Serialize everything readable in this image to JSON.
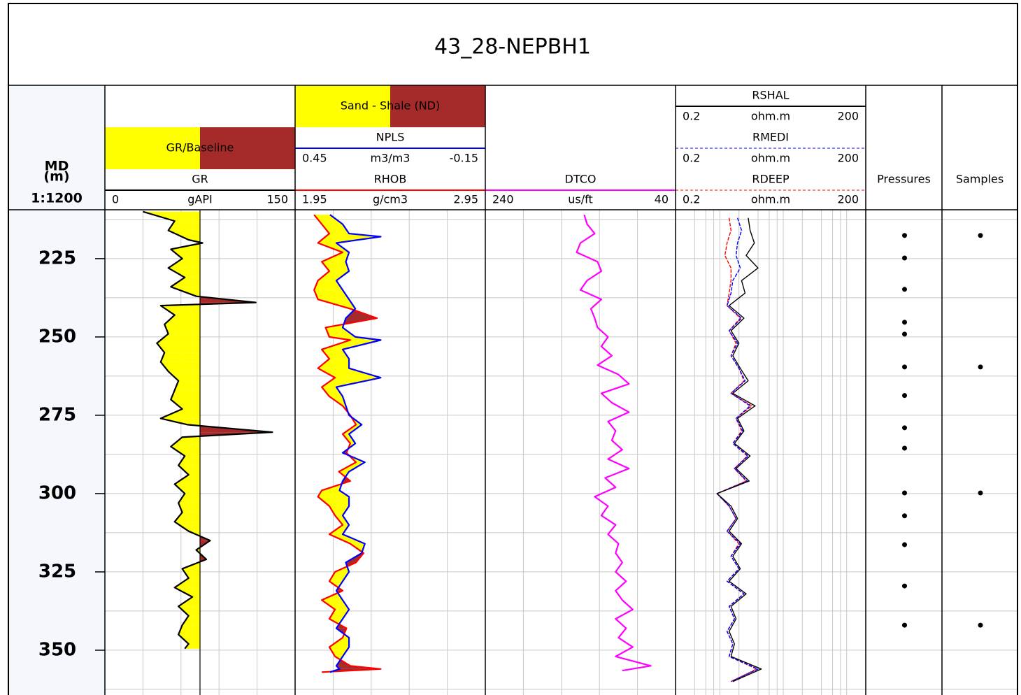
{
  "chart_data": {
    "type": "well_log",
    "title": "43_28-NEPBH1",
    "depth": {
      "label": [
        "MD",
        "(m)"
      ],
      "scale": "1:1200",
      "ylim": [
        209.4,
        364.3
      ],
      "yticks": [
        225,
        250,
        275,
        300,
        325,
        350
      ],
      "grid": [
        212.5,
        225,
        237.5,
        250,
        262.5,
        275,
        287.5,
        300,
        312.5,
        325,
        337.5,
        350,
        362.5
      ]
    },
    "tracks": [
      {
        "type": "curves",
        "xgrid": [
          30,
          60,
          90,
          120
        ],
        "fill": {
          "name": "GR/Baseline",
          "curve": 0,
          "baseline": 75,
          "left_color": "#ffff00",
          "right_color": "#a52a2a"
        },
        "depth": [
          210,
          213,
          216,
          219,
          220,
          222,
          225,
          228,
          231,
          234,
          237,
          239,
          240,
          243,
          246,
          249,
          252,
          255,
          258,
          261,
          264,
          267,
          270,
          273,
          276,
          278,
          280.4,
          282,
          285,
          288,
          291,
          294,
          297,
          300,
          303,
          306,
          309,
          312,
          315,
          318,
          321,
          324,
          327,
          330,
          333,
          336,
          339,
          342,
          345,
          348,
          349.5
        ],
        "curves": [
          {
            "name": "GR",
            "unit": "gAPI",
            "color": "#000000",
            "xlim": [
              0,
              150
            ],
            "values": [
              30,
              55,
              50,
              66,
              77,
              52,
              61,
              50,
              63,
              52,
              72,
              119,
              44,
              55,
              47,
              50,
              41,
              47,
              44,
              50,
              58,
              55,
              52,
              61,
              44,
              65,
              132,
              61,
              52,
              63,
              58,
              66,
              55,
              63,
              58,
              61,
              55,
              66,
              83,
              72,
              80,
              61,
              66,
              55,
              69,
              58,
              66,
              61,
              58,
              66,
              63
            ]
          }
        ]
      },
      {
        "type": "curves",
        "xgrid": [
          0.33,
          0.21,
          0.09,
          -0.03
        ],
        "fill": {
          "name": "Sand - Shale (ND)",
          "between": [
            1,
            0
          ],
          "left_color": "#ffff00",
          "right_color": "#a52a2a"
        },
        "depth": [
          211,
          214,
          217,
          218,
          220,
          223,
          226,
          229,
          232,
          235,
          238,
          241,
          244,
          247,
          250,
          251,
          254,
          257,
          260,
          263,
          266,
          269,
          272,
          275,
          278,
          281,
          284,
          287,
          290,
          293,
          296,
          299,
          301,
          304,
          307,
          310,
          313,
          316,
          319,
          322,
          325,
          328,
          331,
          334,
          337,
          340,
          343,
          346,
          349,
          352,
          355,
          356,
          357
        ],
        "curves": [
          {
            "name": "NPLS",
            "unit": "m3/m3",
            "color": "#0000ff",
            "xlim": [
              0.45,
              -0.15
            ],
            "values": [
              0.34,
              0.3,
              0.28,
              0.18,
              0.32,
              0.28,
              0.29,
              0.28,
              0.32,
              0.3,
              0.28,
              0.26,
              0.29,
              0.3,
              0.26,
              0.18,
              0.3,
              0.28,
              0.28,
              0.18,
              0.32,
              0.3,
              0.29,
              0.28,
              0.24,
              0.28,
              0.26,
              0.3,
              0.23,
              0.28,
              0.3,
              0.31,
              0.28,
              0.28,
              0.3,
              0.28,
              0.3,
              0.23,
              0.24,
              0.29,
              0.28,
              0.3,
              0.32,
              0.3,
              0.28,
              0.3,
              0.32,
              0.28,
              0.28,
              0.3,
              0.32,
              0.31,
              0.34
            ]
          },
          {
            "name": "RHOB",
            "unit": "g/cm3",
            "color": "#ff0000",
            "xlim": [
              1.95,
              2.95
            ],
            "values": [
              2.05,
              2.09,
              2.13,
              2.11,
              2.07,
              2.2,
              2.09,
              2.13,
              2.07,
              2.05,
              2.07,
              2.24,
              2.38,
              2.11,
              2.13,
              2.24,
              2.09,
              2.13,
              2.07,
              2.16,
              2.09,
              2.13,
              2.2,
              2.24,
              2.27,
              2.2,
              2.24,
              2.22,
              2.27,
              2.18,
              2.24,
              2.09,
              2.07,
              2.13,
              2.16,
              2.2,
              2.13,
              2.24,
              2.31,
              2.27,
              2.16,
              2.13,
              2.2,
              2.09,
              2.16,
              2.13,
              2.22,
              2.2,
              2.13,
              2.16,
              2.24,
              2.4,
              2.09
            ]
          }
        ]
      },
      {
        "type": "curves",
        "xgrid": [
          200,
          160,
          120,
          80
        ],
        "depth": [
          211,
          214,
          217,
          220,
          223,
          226,
          229,
          232,
          235,
          238,
          241,
          244,
          247,
          250,
          253,
          256,
          259,
          262,
          265,
          268,
          271,
          274,
          277,
          280,
          283,
          286,
          289,
          292,
          295,
          298,
          301,
          304,
          307,
          310,
          313,
          316,
          319,
          322,
          325,
          328,
          331,
          334,
          337,
          340,
          343,
          346,
          349,
          352,
          355,
          356.5
        ],
        "curves": [
          {
            "name": "DTCO",
            "unit": "us/ft",
            "color": "#ff00ff",
            "xlim": [
              240,
              40
            ],
            "values": [
              136,
              133,
              125,
              140,
              144,
              122,
              118,
              133,
              140,
              118,
              129,
              125,
              122,
              111,
              118,
              107,
              122,
              100,
              89,
              118,
              107,
              89,
              111,
              103,
              107,
              96,
              111,
              89,
              114,
              103,
              125,
              111,
              118,
              103,
              111,
              100,
              103,
              96,
              103,
              92,
              103,
              96,
              85,
              103,
              92,
              100,
              85,
              103,
              66,
              96
            ]
          }
        ]
      },
      {
        "type": "curves",
        "log": true,
        "xgrid": [
          0.4,
          0.6,
          0.8,
          1,
          2,
          4,
          6,
          8,
          10,
          20,
          40,
          60,
          80,
          100
        ],
        "depth": [
          212,
          216,
          220,
          224,
          228,
          232,
          236,
          240,
          244,
          248,
          252,
          256,
          260,
          264,
          268,
          272,
          276,
          280,
          284,
          288,
          292,
          296,
          300,
          304,
          308,
          312,
          316,
          320,
          324,
          328,
          332,
          336,
          340,
          344,
          348,
          352,
          356,
          360
        ],
        "curves": [
          {
            "name": "RSHAL",
            "unit": "ohm.m",
            "color": "#000000",
            "xlim": [
              0.2,
              200
            ],
            "values": [
              2.8,
              3.0,
              3.5,
              2.6,
              4.0,
              2.2,
              2.5,
              1.4,
              2.4,
              1.5,
              2.0,
              1.6,
              2.1,
              2.8,
              1.6,
              3.6,
              1.9,
              2.4,
              1.7,
              3.0,
              1.8,
              2.9,
              0.9,
              1.5,
              1.9,
              1.4,
              2.2,
              1.6,
              2.1,
              1.4,
              2.6,
              1.5,
              1.8,
              1.4,
              1.7,
              1.5,
              4.5,
              1.6
            ]
          },
          {
            "name": "RMEDI",
            "unit": "ohm.m",
            "color": "#0000ff",
            "xlim": [
              0.2,
              200
            ],
            "dash": true,
            "values": [
              1.9,
              2.2,
              1.9,
              1.8,
              2.1,
              1.6,
              1.5,
              1.3,
              2.2,
              1.4,
              1.9,
              1.5,
              2.0,
              2.5,
              1.5,
              3.0,
              1.8,
              2.3,
              1.6,
              2.8,
              1.7,
              2.7,
              0.9,
              1.4,
              1.8,
              1.3,
              2.1,
              1.5,
              2.0,
              1.3,
              2.4,
              1.4,
              1.7,
              1.3,
              1.6,
              1.4,
              4.0,
              1.5
            ]
          },
          {
            "name": "RDEEP",
            "unit": "ohm.m",
            "color": "#ff0000",
            "xlim": [
              0.2,
              200
            ],
            "dash": true,
            "values": [
              1.4,
              1.5,
              1.3,
              1.2,
              1.5,
              1.5,
              1.4,
              1.3,
              2.1,
              1.4,
              1.8,
              1.5,
              2.0,
              2.4,
              1.5,
              3.2,
              1.8,
              2.2,
              1.6,
              2.7,
              1.7,
              2.6,
              0.9,
              1.4,
              1.8,
              1.3,
              2.0,
              1.5,
              2.0,
              1.3,
              2.4,
              1.4,
              1.7,
              1.3,
              1.6,
              1.4,
              3.8,
              1.5
            ]
          }
        ]
      },
      {
        "type": "points",
        "name": "Pressures",
        "color": "#000000",
        "depths": [
          217.6,
          224.8,
          234.8,
          245.3,
          249.1,
          259.6,
          268.7,
          279,
          285.5,
          299.8,
          307.1,
          316.3,
          329.5,
          342
        ]
      },
      {
        "type": "points",
        "name": "Samples",
        "color": "#000000",
        "depths": [
          217.6,
          259.6,
          299.8,
          342
        ]
      }
    ]
  }
}
